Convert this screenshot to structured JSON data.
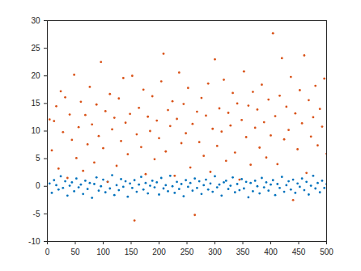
{
  "chart_data": {
    "type": "scatter",
    "x": [
      4,
      8,
      12,
      16,
      20,
      24,
      28,
      32,
      36,
      40,
      44,
      48,
      52,
      56,
      60,
      64,
      68,
      72,
      76,
      80,
      84,
      88,
      92,
      96,
      100,
      104,
      108,
      112,
      116,
      120,
      124,
      128,
      132,
      136,
      140,
      144,
      148,
      152,
      156,
      160,
      164,
      168,
      172,
      176,
      180,
      184,
      188,
      192,
      196,
      200,
      204,
      208,
      212,
      216,
      220,
      224,
      228,
      232,
      236,
      240,
      244,
      248,
      252,
      256,
      260,
      264,
      268,
      272,
      276,
      280,
      284,
      288,
      292,
      296,
      300,
      304,
      308,
      312,
      316,
      320,
      324,
      328,
      332,
      336,
      340,
      344,
      348,
      352,
      356,
      360,
      364,
      368,
      372,
      376,
      380,
      384,
      388,
      392,
      396,
      400,
      404,
      408,
      412,
      416,
      420,
      424,
      428,
      432,
      436,
      440,
      444,
      448,
      452,
      456,
      460,
      464,
      468,
      472,
      476,
      480,
      484,
      488,
      492,
      496,
      500
    ],
    "series": [
      {
        "color": "#0072BD",
        "values": [
          0.5,
          -1.2,
          1.1,
          0.2,
          -0.6,
          1.8,
          -0.3,
          0.9,
          -1.7,
          0.1,
          0.7,
          -0.9,
          1.4,
          -0.2,
          0.3,
          -1.4,
          1.0,
          -0.5,
          0.6,
          -2.1,
          0.4,
          1.6,
          -0.8,
          0.0,
          1.2,
          -1.1,
          0.8,
          -0.4,
          2.0,
          -1.6,
          0.2,
          -0.7,
          1.3,
          -0.1,
          0.9,
          -1.9,
          0.5,
          -0.3,
          1.1,
          -1.0,
          0.3,
          1.7,
          -0.6,
          0.6,
          -1.3,
          0.1,
          1.0,
          -0.2,
          0.7,
          -1.5,
          1.5,
          -0.4,
          0.2,
          -0.9,
          1.9,
          0.0,
          -1.2,
          0.8,
          -0.5,
          0.4,
          -1.8,
          1.1,
          -0.1,
          0.6,
          -0.8,
          1.4,
          -0.3,
          0.9,
          -1.4,
          0.2,
          1.2,
          -0.6,
          0.5,
          -1.0,
          1.8,
          -0.2,
          0.3,
          -1.7,
          0.7,
          1.0,
          -0.5,
          0.1,
          1.6,
          -1.1,
          0.4,
          -0.7,
          1.3,
          -0.4,
          0.8,
          -2.0,
          0.6,
          -0.9,
          1.0,
          0.0,
          -1.3,
          1.5,
          -0.2,
          0.7,
          -0.8,
          0.3,
          1.1,
          -1.6,
          0.4,
          -0.3,
          1.7,
          -1.0,
          0.2,
          0.9,
          -0.6,
          1.2,
          -1.2,
          0.5,
          -0.1,
          1.4,
          -0.7,
          0.8,
          -1.5,
          0.1,
          1.9,
          -0.4,
          0.6,
          -1.1,
          1.0,
          -0.3,
          0.4
        ]
      },
      {
        "color": "#D95319",
        "values": [
          12.1,
          6.5,
          11.8,
          14.5,
          3.2,
          17.2,
          9.8,
          16.1,
          1.5,
          13.0,
          8.4,
          20.2,
          5.1,
          10.7,
          15.3,
          2.8,
          12.9,
          7.6,
          18.0,
          11.2,
          4.3,
          14.8,
          9.1,
          22.5,
          6.9,
          13.6,
          0.8,
          16.7,
          10.3,
          12.4,
          3.7,
          15.9,
          8.2,
          19.6,
          11.5,
          5.8,
          13.1,
          20.0,
          -6.2,
          9.4,
          14.2,
          7.1,
          17.5,
          2.2,
          12.6,
          10.0,
          16.3,
          4.9,
          11.9,
          8.7,
          19.0,
          24.0,
          6.3,
          13.8,
          10.9,
          15.4,
          1.9,
          12.2,
          20.6,
          7.8,
          14.9,
          9.6,
          17.8,
          3.4,
          11.3,
          -5.2,
          13.5,
          8.0,
          16.0,
          5.5,
          12.8,
          18.6,
          2.6,
          10.4,
          23.0,
          7.3,
          14.1,
          9.9,
          19.3,
          4.6,
          13.3,
          11.0,
          16.9,
          6.1,
          15.0,
          1.2,
          12.0,
          20.8,
          8.9,
          14.6,
          3.9,
          17.1,
          10.6,
          13.9,
          7.0,
          18.4,
          11.6,
          5.2,
          15.7,
          9.2,
          27.7,
          12.7,
          4.0,
          16.4,
          23.2,
          8.5,
          14.4,
          10.2,
          19.8,
          -2.5,
          13.2,
          6.7,
          17.4,
          11.4,
          23.7,
          2.4,
          15.6,
          9.0,
          12.5,
          18.2,
          7.4,
          14.0,
          10.8,
          19.5,
          5.9
        ]
      }
    ],
    "xlim": [
      0,
      500
    ],
    "xticks": [
      0,
      50,
      100,
      150,
      200,
      250,
      300,
      350,
      400,
      450,
      500
    ],
    "ylim": [
      -10,
      30
    ],
    "yticks": [
      -10,
      -5,
      0,
      5,
      10,
      15,
      20,
      25,
      30
    ],
    "grid": false
  }
}
